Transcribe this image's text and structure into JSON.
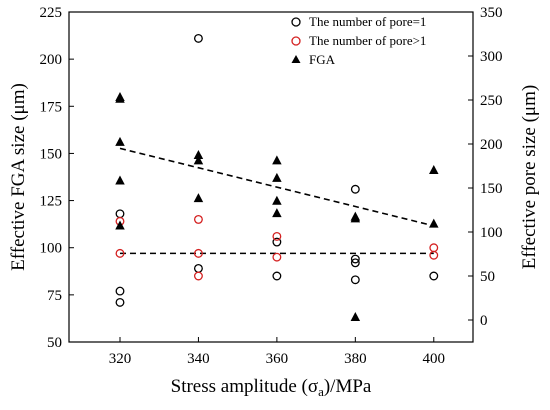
{
  "chart_data": {
    "type": "scatter",
    "xlabel_main": "Stress amplitude (σ",
    "xlabel_sub": "a",
    "xlabel_tail": ")/MPa",
    "ylabel_left": "Effective FGA size (μm)",
    "ylabel_right": "Effective pore size (μm)",
    "xlim": [
      307,
      410
    ],
    "ylim_left": [
      50,
      225
    ],
    "ylim_right": [
      -25,
      350
    ],
    "x_ticks": [
      "320",
      "340",
      "360",
      "380",
      "400"
    ],
    "y_left_ticks": [
      "50",
      "75",
      "100",
      "125",
      "150",
      "175",
      "200",
      "225"
    ],
    "y_right_ticks": [
      "0",
      "50",
      "100",
      "150",
      "200",
      "250",
      "300",
      "350"
    ],
    "legend_position": "top-right",
    "series": [
      {
        "name": "The number of pore=1",
        "marker": "open-circle",
        "color": "#000000",
        "axis": "left",
        "points": [
          [
            320,
            71
          ],
          [
            320,
            77
          ],
          [
            320,
            118
          ],
          [
            340,
            89
          ],
          [
            340,
            211
          ],
          [
            360,
            85
          ],
          [
            360,
            103
          ],
          [
            380,
            83
          ],
          [
            380,
            92
          ],
          [
            380,
            94
          ],
          [
            380,
            131
          ],
          [
            400,
            85
          ]
        ]
      },
      {
        "name": "The number of pore>1",
        "marker": "open-circle",
        "color": "#d42020",
        "axis": "left",
        "points": [
          [
            320,
            97
          ],
          [
            320,
            114
          ],
          [
            340,
            85
          ],
          [
            340,
            97
          ],
          [
            340,
            115
          ],
          [
            360,
            95
          ],
          [
            360,
            106
          ],
          [
            400,
            96
          ],
          [
            400,
            100
          ]
        ]
      },
      {
        "name": "FGA",
        "marker": "filled-triangle",
        "color": "#000000",
        "axis": "right",
        "points": [
          [
            320,
            251
          ],
          [
            320,
            253
          ],
          [
            320,
            202
          ],
          [
            320,
            158
          ],
          [
            320,
            107
          ],
          [
            340,
            187
          ],
          [
            340,
            181
          ],
          [
            340,
            138
          ],
          [
            360,
            181
          ],
          [
            360,
            161
          ],
          [
            360,
            135
          ],
          [
            360,
            121
          ],
          [
            380,
            117
          ],
          [
            380,
            115
          ],
          [
            380,
            3
          ],
          [
            400,
            170
          ],
          [
            400,
            109
          ]
        ]
      }
    ],
    "trendlines": [
      {
        "axis": "right",
        "from": [
          320,
          195
        ],
        "to": [
          400,
          107
        ]
      },
      {
        "axis": "left",
        "from": [
          320,
          97
        ],
        "to": [
          400,
          97
        ]
      }
    ]
  }
}
